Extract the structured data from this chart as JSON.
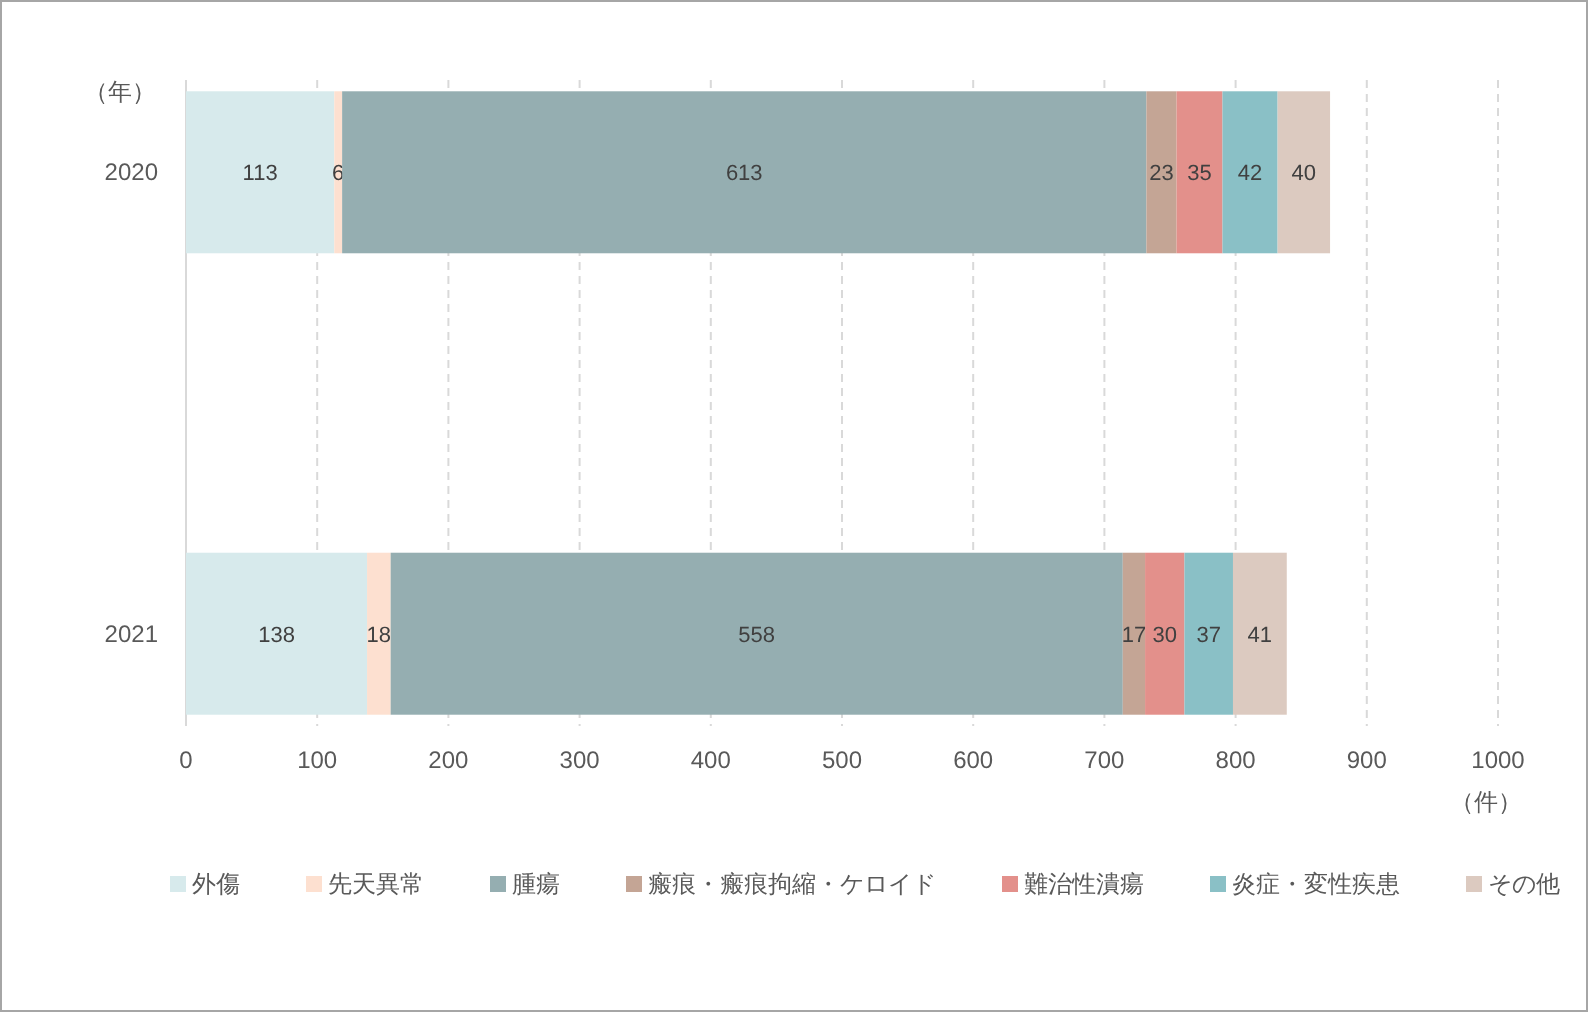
{
  "chart_data": {
    "type": "bar",
    "orientation": "horizontal",
    "stacked": true,
    "ylabel": "（年）",
    "xlabel": "（件）",
    "categories": [
      "2020",
      "2021"
    ],
    "series": [
      {
        "name": "外傷",
        "color": "#d7eaec",
        "values": [
          113,
          138
        ]
      },
      {
        "name": "先天異常",
        "color": "#fde0d0",
        "values": [
          6,
          18
        ]
      },
      {
        "name": "腫瘍",
        "color": "#95aeb1",
        "values": [
          613,
          558
        ]
      },
      {
        "name": "瘢痕・瘢痕拘縮・ケロイド",
        "color": "#c4a595",
        "values": [
          23,
          17
        ]
      },
      {
        "name": "難治性潰瘍",
        "color": "#e3908b",
        "values": [
          35,
          30
        ]
      },
      {
        "name": "炎症・変性疾患",
        "color": "#8ac0c6",
        "values": [
          42,
          37
        ]
      },
      {
        "name": "その他",
        "color": "#dccac0",
        "values": [
          40,
          41
        ]
      }
    ],
    "xlim": [
      0,
      1000
    ],
    "xticks": [
      0,
      100,
      200,
      300,
      400,
      500,
      600,
      700,
      800,
      900,
      1000
    ],
    "grid": "x",
    "legend": "bottom",
    "data_labels": true
  }
}
